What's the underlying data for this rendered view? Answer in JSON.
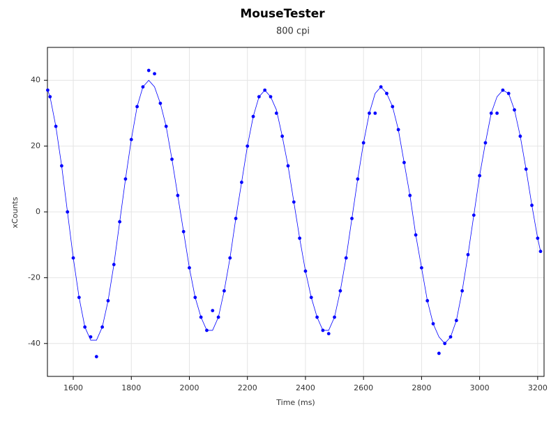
{
  "chart_data": {
    "type": "scatter",
    "title": "MouseTester",
    "subtitle": "800 cpi",
    "x_label": "Time (ms)",
    "y_label": "xCounts",
    "x": [
      1512,
      1520,
      1540,
      1560,
      1580,
      1600,
      1620,
      1640,
      1660,
      1680,
      1700,
      1720,
      1740,
      1760,
      1780,
      1800,
      1820,
      1840,
      1860,
      1880,
      1900,
      1920,
      1940,
      1960,
      1980,
      2000,
      2020,
      2040,
      2060,
      2080,
      2100,
      2120,
      2140,
      2160,
      2180,
      2200,
      2220,
      2240,
      2260,
      2280,
      2300,
      2320,
      2340,
      2360,
      2380,
      2400,
      2420,
      2440,
      2460,
      2480,
      2500,
      2520,
      2540,
      2560,
      2580,
      2600,
      2620,
      2640,
      2660,
      2680,
      2700,
      2720,
      2740,
      2760,
      2780,
      2800,
      2820,
      2840,
      2860,
      2880,
      2900,
      2920,
      2940,
      2960,
      2980,
      3000,
      3020,
      3040,
      3060,
      3080,
      3100,
      3120,
      3140,
      3160,
      3180,
      3200,
      3210
    ],
    "series": [
      {
        "mode": "markers",
        "color": "#0000ff",
        "values": [
          37,
          35,
          26,
          14,
          0,
          -14,
          -26,
          -35,
          -38,
          -44,
          -35,
          -27,
          -16,
          -3,
          10,
          22,
          32,
          38,
          43,
          42,
          33,
          26,
          16,
          5,
          -6,
          -17,
          -26,
          -32,
          -36,
          -30,
          -32,
          -24,
          -14,
          -2,
          9,
          20,
          29,
          35,
          37,
          35,
          30,
          23,
          14,
          3,
          -8,
          -18,
          -26,
          -32,
          -36,
          -37,
          -32,
          -24,
          -14,
          -2,
          10,
          21,
          30,
          30,
          38,
          36,
          32,
          25,
          15,
          5,
          -7,
          -17,
          -27,
          -34,
          -43,
          -40,
          -38,
          -33,
          -24,
          -13,
          -1,
          11,
          21,
          30,
          30,
          37,
          36,
          31,
          23,
          13,
          2,
          -8,
          -12
        ]
      },
      {
        "mode": "line",
        "color": "#0000ff",
        "values": [
          37,
          35,
          26,
          14,
          0,
          -14,
          -26,
          -35,
          -39,
          -39,
          -35,
          -27,
          -16,
          -3,
          10,
          22,
          32,
          38,
          40,
          38,
          33,
          26,
          16,
          5,
          -6,
          -17,
          -26,
          -32,
          -36,
          -36,
          -32,
          -24,
          -14,
          -2,
          9,
          20,
          29,
          35,
          37,
          35,
          31,
          23,
          14,
          3,
          -8,
          -18,
          -26,
          -32,
          -36,
          -36,
          -32,
          -24,
          -14,
          -2,
          10,
          21,
          30,
          36,
          38,
          36,
          32,
          25,
          15,
          5,
          -7,
          -17,
          -27,
          -34,
          -38,
          -40,
          -38,
          -33,
          -24,
          -13,
          -1,
          11,
          21,
          30,
          35,
          37,
          36,
          31,
          23,
          13,
          2,
          -8,
          -12
        ]
      }
    ],
    "xlim": [
      1511,
      3222
    ],
    "xticks": [
      1600,
      1800,
      2000,
      2200,
      2400,
      2600,
      2800,
      3000,
      3200
    ],
    "ylim": [
      -50,
      50
    ],
    "yticks": [
      -40,
      -20,
      0,
      20,
      40
    ],
    "grid": true
  }
}
